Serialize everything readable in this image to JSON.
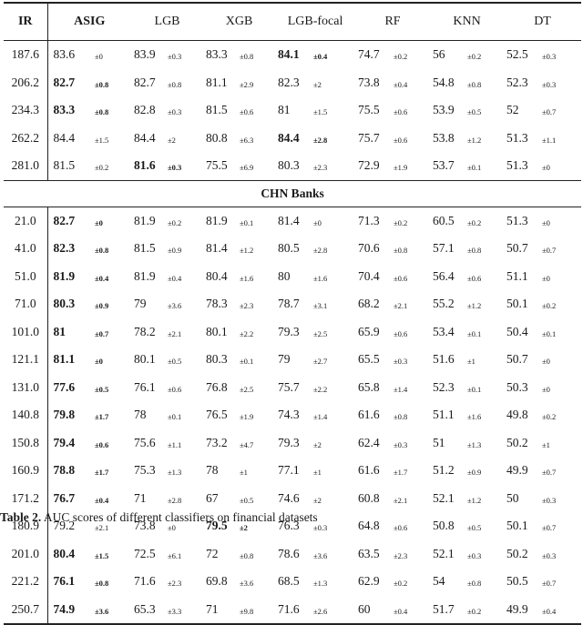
{
  "header": {
    "ir": "IR",
    "models": [
      "ASIG",
      "LGB",
      "XGB",
      "LGB-focal",
      "RF",
      "KNN",
      "DT"
    ]
  },
  "group1": {
    "rows": [
      {
        "ir": "187.6",
        "cells": [
          [
            "83.6",
            "±0",
            false
          ],
          [
            "83.9",
            "±0.3",
            false
          ],
          [
            "83.3",
            "±0.8",
            false
          ],
          [
            "84.1",
            "±0.4",
            true
          ],
          [
            "74.7",
            "±0.2",
            false
          ],
          [
            "56",
            "±0.2",
            false
          ],
          [
            "52.5",
            "±0.3",
            false
          ]
        ]
      },
      {
        "ir": "206.2",
        "cells": [
          [
            "82.7",
            "±0.8",
            true
          ],
          [
            "82.7",
            "±0.8",
            false
          ],
          [
            "81.1",
            "±2.9",
            false
          ],
          [
            "82.3",
            "±2",
            false
          ],
          [
            "73.8",
            "±0.4",
            false
          ],
          [
            "54.8",
            "±0.8",
            false
          ],
          [
            "52.3",
            "±0.3",
            false
          ]
        ]
      },
      {
        "ir": "234.3",
        "cells": [
          [
            "83.3",
            "±0.8",
            true
          ],
          [
            "82.8",
            "±0.3",
            false
          ],
          [
            "81.5",
            "±0.6",
            false
          ],
          [
            "81",
            "±1.5",
            false
          ],
          [
            "75.5",
            "±0.6",
            false
          ],
          [
            "53.9",
            "±0.5",
            false
          ],
          [
            "52",
            "±0.7",
            false
          ]
        ]
      },
      {
        "ir": "262.2",
        "cells": [
          [
            "84.4",
            "±1.5",
            false
          ],
          [
            "84.4",
            "±2",
            false
          ],
          [
            "80.8",
            "±6.3",
            false
          ],
          [
            "84.4",
            "±2.8",
            true
          ],
          [
            "75.7",
            "±0.6",
            false
          ],
          [
            "53.8",
            "±1.2",
            false
          ],
          [
            "51.3",
            "±1.1",
            false
          ]
        ]
      },
      {
        "ir": "281.0",
        "cells": [
          [
            "81.5",
            "±0.2",
            false
          ],
          [
            "81.6",
            "±0.3",
            true
          ],
          [
            "75.5",
            "±6.9",
            false
          ],
          [
            "80.3",
            "±2.3",
            false
          ],
          [
            "72.9",
            "±1.9",
            false
          ],
          [
            "53.7",
            "±0.1",
            false
          ],
          [
            "51.3",
            "±0",
            false
          ]
        ]
      }
    ]
  },
  "group2": {
    "title": "CHN Banks",
    "rows": [
      {
        "ir": "21.0",
        "cells": [
          [
            "82.7",
            "±0",
            true
          ],
          [
            "81.9",
            "±0.2",
            false
          ],
          [
            "81.9",
            "±0.1",
            false
          ],
          [
            "81.4",
            "±0",
            false
          ],
          [
            "71.3",
            "±0.2",
            false
          ],
          [
            "60.5",
            "±0.2",
            false
          ],
          [
            "51.3",
            "±0",
            false
          ]
        ]
      },
      {
        "ir": "41.0",
        "cells": [
          [
            "82.3",
            "±0.8",
            true
          ],
          [
            "81.5",
            "±0.9",
            false
          ],
          [
            "81.4",
            "±1.2",
            false
          ],
          [
            "80.5",
            "±2.8",
            false
          ],
          [
            "70.6",
            "±0.8",
            false
          ],
          [
            "57.1",
            "±0.8",
            false
          ],
          [
            "50.7",
            "±0.7",
            false
          ]
        ]
      },
      {
        "ir": "51.0",
        "cells": [
          [
            "81.9",
            "±0.4",
            true
          ],
          [
            "81.9",
            "±0.4",
            false
          ],
          [
            "80.4",
            "±1.6",
            false
          ],
          [
            "80",
            "±1.6",
            false
          ],
          [
            "70.4",
            "±0.6",
            false
          ],
          [
            "56.4",
            "±0.6",
            false
          ],
          [
            "51.1",
            "±0",
            false
          ]
        ]
      },
      {
        "ir": "71.0",
        "cells": [
          [
            "80.3",
            "±0.9",
            true
          ],
          [
            "79",
            "±3.6",
            false
          ],
          [
            "78.3",
            "±2.3",
            false
          ],
          [
            "78.7",
            "±3.1",
            false
          ],
          [
            "68.2",
            "±2.1",
            false
          ],
          [
            "55.2",
            "±1.2",
            false
          ],
          [
            "50.1",
            "±0.2",
            false
          ]
        ]
      },
      {
        "ir": "101.0",
        "cells": [
          [
            "81",
            "±0.7",
            true
          ],
          [
            "78.2",
            "±2.1",
            false
          ],
          [
            "80.1",
            "±2.2",
            false
          ],
          [
            "79.3",
            "±2.5",
            false
          ],
          [
            "65.9",
            "±0.6",
            false
          ],
          [
            "53.4",
            "±0.1",
            false
          ],
          [
            "50.4",
            "±0.1",
            false
          ]
        ]
      },
      {
        "ir": "121.1",
        "cells": [
          [
            "81.1",
            "±0",
            true
          ],
          [
            "80.1",
            "±0.5",
            false
          ],
          [
            "80.3",
            "±0.1",
            false
          ],
          [
            "79",
            "±2.7",
            false
          ],
          [
            "65.5",
            "±0.3",
            false
          ],
          [
            "51.6",
            "±1",
            false
          ],
          [
            "50.7",
            "±0",
            false
          ]
        ]
      },
      {
        "ir": "131.0",
        "cells": [
          [
            "77.6",
            "±0.5",
            true
          ],
          [
            "76.1",
            "±0.6",
            false
          ],
          [
            "76.8",
            "±2.5",
            false
          ],
          [
            "75.7",
            "±2.2",
            false
          ],
          [
            "65.8",
            "±1.4",
            false
          ],
          [
            "52.3",
            "±0.1",
            false
          ],
          [
            "50.3",
            "±0",
            false
          ]
        ]
      },
      {
        "ir": "140.8",
        "cells": [
          [
            "79.8",
            "±1.7",
            true
          ],
          [
            "78",
            "±0.1",
            false
          ],
          [
            "76.5",
            "±1.9",
            false
          ],
          [
            "74.3",
            "±1.4",
            false
          ],
          [
            "61.6",
            "±0.8",
            false
          ],
          [
            "51.1",
            "±1.6",
            false
          ],
          [
            "49.8",
            "±0.2",
            false
          ]
        ]
      },
      {
        "ir": "150.8",
        "cells": [
          [
            "79.4",
            "±0.6",
            true
          ],
          [
            "75.6",
            "±1.1",
            false
          ],
          [
            "73.2",
            "±4.7",
            false
          ],
          [
            "79.3",
            "±2",
            false
          ],
          [
            "62.4",
            "±0.3",
            false
          ],
          [
            "51",
            "±1.3",
            false
          ],
          [
            "50.2",
            "±1",
            false
          ]
        ]
      },
      {
        "ir": "160.9",
        "cells": [
          [
            "78.8",
            "±1.7",
            true
          ],
          [
            "75.3",
            "±1.3",
            false
          ],
          [
            "78",
            "±1",
            false
          ],
          [
            "77.1",
            "±1",
            false
          ],
          [
            "61.6",
            "±1.7",
            false
          ],
          [
            "51.2",
            "±0.9",
            false
          ],
          [
            "49.9",
            "±0.7",
            false
          ]
        ]
      },
      {
        "ir": "171.2",
        "cells": [
          [
            "76.7",
            "±0.4",
            true
          ],
          [
            "71",
            "±2.8",
            false
          ],
          [
            "67",
            "±0.5",
            false
          ],
          [
            "74.6",
            "±2",
            false
          ],
          [
            "60.8",
            "±2.1",
            false
          ],
          [
            "52.1",
            "±1.2",
            false
          ],
          [
            "50",
            "±0.3",
            false
          ]
        ]
      },
      {
        "ir": "180.9",
        "cells": [
          [
            "79.2",
            "±2.1",
            false
          ],
          [
            "73.8",
            "±0",
            false
          ],
          [
            "79.5",
            "±2",
            true
          ],
          [
            "76.3",
            "±0.3",
            false
          ],
          [
            "64.8",
            "±0.6",
            false
          ],
          [
            "50.8",
            "±0.5",
            false
          ],
          [
            "50.1",
            "±0.7",
            false
          ]
        ]
      },
      {
        "ir": "201.0",
        "cells": [
          [
            "80.4",
            "±1.5",
            true
          ],
          [
            "72.5",
            "±6.1",
            false
          ],
          [
            "72",
            "±0.8",
            false
          ],
          [
            "78.6",
            "±3.6",
            false
          ],
          [
            "63.5",
            "±2.3",
            false
          ],
          [
            "52.1",
            "±0.3",
            false
          ],
          [
            "50.2",
            "±0.3",
            false
          ]
        ]
      },
      {
        "ir": "221.2",
        "cells": [
          [
            "76.1",
            "±0.8",
            true
          ],
          [
            "71.6",
            "±2.3",
            false
          ],
          [
            "69.8",
            "±3.6",
            false
          ],
          [
            "68.5",
            "±1.3",
            false
          ],
          [
            "62.9",
            "±0.2",
            false
          ],
          [
            "54",
            "±0.8",
            false
          ],
          [
            "50.5",
            "±0.7",
            false
          ]
        ]
      },
      {
        "ir": "250.7",
        "cells": [
          [
            "74.9",
            "±3.6",
            true
          ],
          [
            "65.3",
            "±3.3",
            false
          ],
          [
            "71",
            "±9.8",
            false
          ],
          [
            "71.6",
            "±2.6",
            false
          ],
          [
            "60",
            "±0.4",
            false
          ],
          [
            "51.7",
            "±0.2",
            false
          ],
          [
            "49.9",
            "±0.4",
            false
          ]
        ]
      }
    ]
  },
  "caption": {
    "label": "Table 2.",
    "text": " AUC scores of different classifiers on financial datasets"
  }
}
